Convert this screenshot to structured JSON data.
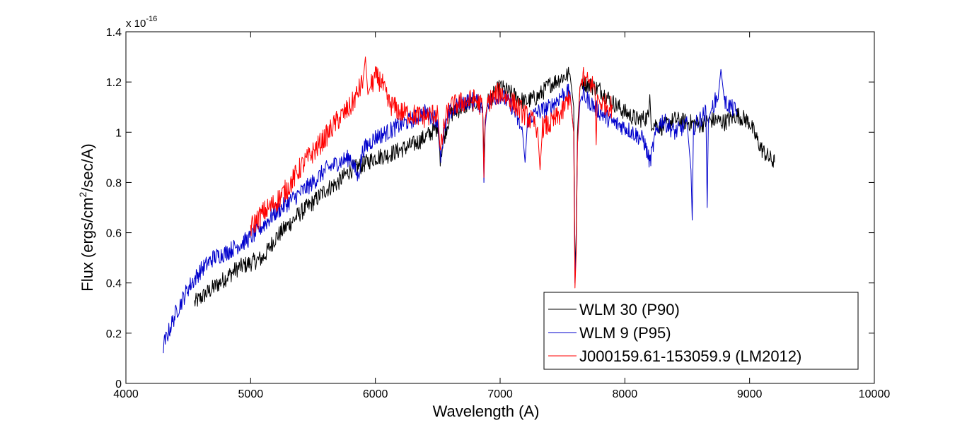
{
  "chart_data": {
    "type": "line",
    "title": "",
    "xlabel": "Wavelength (A)",
    "ylabel_parts": [
      "Flux (ergs/cm",
      "2",
      "/sec/A)"
    ],
    "y_exponent": {
      "base": "x 10",
      "power": "-16"
    },
    "xlim": [
      4000,
      10000
    ],
    "ylim": [
      0,
      1.4
    ],
    "xticks": [
      4000,
      5000,
      6000,
      7000,
      8000,
      9000,
      10000
    ],
    "xtick_labels": [
      "4000",
      "5000",
      "6000",
      "7000",
      "8000",
      "9000",
      "10000"
    ],
    "yticks": [
      0,
      0.2,
      0.4,
      0.6,
      0.8,
      1.0,
      1.2,
      1.4
    ],
    "ytick_labels": [
      "0",
      "0.2",
      "0.4",
      "0.6",
      "0.8",
      "1",
      "1.2",
      "1.4"
    ],
    "legend_position": "bottom-right",
    "series": [
      {
        "name": "WLM 30 (P90)",
        "color": "#000000",
        "noise": 0.035,
        "x": [
          4550,
          4700,
          4800,
          4900,
          5000,
          5100,
          5200,
          5300,
          5400,
          5500,
          5600,
          5700,
          5800,
          5900,
          6000,
          6100,
          6200,
          6300,
          6400,
          6500,
          6520,
          6560,
          6600,
          6700,
          6800,
          6860,
          6870,
          6880,
          6900,
          7000,
          7100,
          7200,
          7300,
          7400,
          7500,
          7560,
          7590,
          7600,
          7610,
          7620,
          7640,
          7660,
          7700,
          7800,
          7900,
          8000,
          8100,
          8190,
          8200,
          8210,
          8300,
          8400,
          8500,
          8600,
          8700,
          8800,
          8900,
          9000,
          9050,
          9100,
          9150,
          9200
        ],
        "y": [
          0.32,
          0.38,
          0.42,
          0.46,
          0.48,
          0.5,
          0.58,
          0.63,
          0.68,
          0.72,
          0.77,
          0.8,
          0.85,
          0.87,
          0.9,
          0.91,
          0.93,
          0.95,
          0.98,
          1.02,
          0.9,
          1.0,
          1.07,
          1.1,
          1.12,
          1.1,
          0.9,
          1.05,
          1.12,
          1.18,
          1.15,
          1.12,
          1.14,
          1.19,
          1.22,
          1.23,
          1.1,
          0.45,
          0.6,
          1.0,
          1.18,
          1.2,
          1.19,
          1.17,
          1.12,
          1.08,
          1.05,
          1.06,
          1.15,
          1.04,
          1.02,
          1.05,
          1.04,
          1.03,
          1.05,
          1.04,
          1.07,
          1.04,
          0.98,
          0.93,
          0.9,
          0.88
        ]
      },
      {
        "name": "WLM 9 (P95)",
        "color": "#0000cc",
        "noise": 0.035,
        "x": [
          4300,
          4400,
          4500,
          4600,
          4700,
          4800,
          4900,
          5000,
          5100,
          5200,
          5300,
          5400,
          5500,
          5600,
          5700,
          5800,
          5860,
          5900,
          6000,
          6100,
          6200,
          6300,
          6400,
          6500,
          6520,
          6560,
          6600,
          6700,
          6800,
          6860,
          6870,
          6880,
          6900,
          7000,
          7100,
          7180,
          7200,
          7220,
          7300,
          7400,
          7500,
          7560,
          7590,
          7600,
          7610,
          7620,
          7640,
          7660,
          7700,
          7800,
          7900,
          8000,
          8150,
          8200,
          8250,
          8300,
          8400,
          8500,
          8530,
          8540,
          8550,
          8600,
          8650,
          8660,
          8670,
          8700,
          8750,
          8770,
          8800,
          8900
        ],
        "y": [
          0.15,
          0.28,
          0.38,
          0.45,
          0.5,
          0.52,
          0.55,
          0.58,
          0.63,
          0.68,
          0.72,
          0.76,
          0.8,
          0.85,
          0.88,
          0.9,
          0.82,
          0.93,
          0.98,
          1.0,
          1.03,
          1.05,
          1.08,
          1.05,
          0.9,
          1.02,
          1.08,
          1.12,
          1.13,
          1.1,
          0.8,
          1.02,
          1.12,
          1.15,
          1.1,
          1.0,
          0.88,
          1.05,
          1.08,
          1.1,
          1.15,
          1.16,
          1.0,
          0.4,
          0.55,
          0.95,
          1.12,
          1.15,
          1.13,
          1.08,
          1.04,
          1.02,
          0.97,
          0.88,
          1.0,
          1.05,
          1.0,
          1.03,
          0.85,
          0.65,
          1.02,
          1.05,
          1.08,
          0.7,
          1.05,
          1.1,
          1.15,
          1.25,
          1.12,
          1.08
        ]
      },
      {
        "name": "J000159.61-153059.9 (LM2012)",
        "color": "#ff0000",
        "noise": 0.045,
        "x": [
          5000,
          5100,
          5200,
          5300,
          5400,
          5500,
          5600,
          5700,
          5800,
          5850,
          5900,
          5920,
          5940,
          5960,
          6000,
          6050,
          6100,
          6200,
          6300,
          6400,
          6500,
          6520,
          6560,
          6600,
          6700,
          6800,
          6860,
          6870,
          6880,
          6900,
          7000,
          7100,
          7200,
          7300,
          7320,
          7340,
          7400,
          7500,
          7560,
          7590,
          7600,
          7610,
          7620,
          7640,
          7660,
          7700,
          7760,
          7770,
          7780,
          7800,
          7900
        ],
        "y": [
          0.62,
          0.68,
          0.72,
          0.78,
          0.86,
          0.92,
          0.98,
          1.05,
          1.1,
          1.15,
          1.2,
          1.3,
          1.15,
          1.18,
          1.22,
          1.2,
          1.12,
          1.08,
          1.07,
          1.06,
          1.08,
          0.92,
          1.05,
          1.1,
          1.12,
          1.13,
          1.1,
          0.82,
          1.05,
          1.12,
          1.16,
          1.12,
          1.07,
          1.02,
          0.85,
          1.02,
          1.03,
          1.08,
          1.15,
          1.0,
          0.38,
          0.52,
          0.95,
          1.18,
          1.22,
          1.2,
          1.18,
          0.95,
          1.15,
          1.12,
          1.1
        ]
      }
    ]
  }
}
